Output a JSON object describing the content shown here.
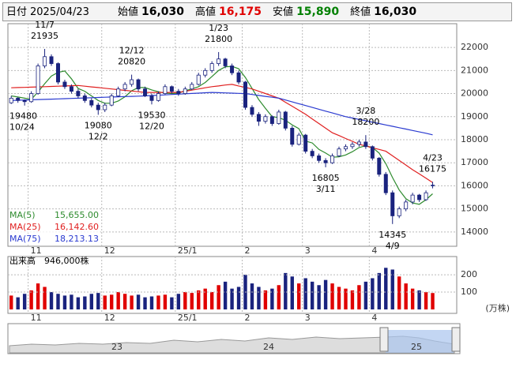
{
  "header": {
    "date_label": "日付",
    "date": "2025/04/23",
    "fields": [
      {
        "label": "始値",
        "value": "16,030",
        "color": "#000000"
      },
      {
        "label": "高値",
        "value": "16,175",
        "color": "#e00000"
      },
      {
        "label": "安値",
        "value": "15,890",
        "color": "#008000"
      },
      {
        "label": "終値",
        "value": "16,030",
        "color": "#000000"
      }
    ]
  },
  "chart_data": {
    "type": "candlestick",
    "up_color": "#ffffff",
    "down_color": "#1a237e",
    "edge_color": "#1a237e",
    "ylim": [
      13380,
      23030
    ],
    "yticks": [
      14000,
      15000,
      16000,
      17000,
      18000,
      19000,
      20000,
      21000,
      22000
    ],
    "xlim": [
      -0.5,
      66.6
    ],
    "xticks": [
      {
        "value": 3,
        "label": "11"
      },
      {
        "value": 14,
        "label": "12"
      },
      {
        "value": 25,
        "label": "25/1"
      },
      {
        "value": 35,
        "label": "2"
      },
      {
        "value": 44,
        "label": "3"
      },
      {
        "value": 54,
        "label": "4"
      }
    ],
    "grid": true,
    "candles": [
      [
        19600,
        19900,
        19550,
        19800
      ],
      [
        19800,
        19850,
        19600,
        19700
      ],
      [
        19700,
        19750,
        19480,
        19650
      ],
      [
        19650,
        20100,
        19600,
        20000
      ],
      [
        20000,
        21300,
        19950,
        21200
      ],
      [
        21200,
        21935,
        21100,
        21600
      ],
      [
        21600,
        21700,
        21200,
        21300
      ],
      [
        21300,
        21350,
        20400,
        20500
      ],
      [
        20500,
        20600,
        20200,
        20300
      ],
      [
        20300,
        20400,
        20000,
        20100
      ],
      [
        20100,
        20200,
        19800,
        19900
      ],
      [
        19900,
        20000,
        19600,
        19700
      ],
      [
        19700,
        19800,
        19400,
        19500
      ],
      [
        19500,
        19600,
        19080,
        19300
      ],
      [
        19300,
        19600,
        19200,
        19500
      ],
      [
        19500,
        20000,
        19450,
        19900
      ],
      [
        19900,
        20300,
        19850,
        20200
      ],
      [
        20200,
        20500,
        20100,
        20400
      ],
      [
        20400,
        20820,
        20300,
        20600
      ],
      [
        20600,
        20650,
        20100,
        20200
      ],
      [
        20200,
        20300,
        19850,
        19900
      ],
      [
        19900,
        20000,
        19530,
        19700
      ],
      [
        19700,
        20100,
        19650,
        20000
      ],
      [
        20000,
        20400,
        19950,
        20300
      ],
      [
        20300,
        20350,
        20000,
        20100
      ],
      [
        20100,
        20200,
        19900,
        20000
      ],
      [
        20000,
        20300,
        19950,
        20200
      ],
      [
        20200,
        20500,
        20150,
        20400
      ],
      [
        20400,
        20900,
        20350,
        20800
      ],
      [
        20800,
        21100,
        20700,
        21000
      ],
      [
        21000,
        21400,
        20900,
        21300
      ],
      [
        21300,
        21800,
        21200,
        21500
      ],
      [
        21500,
        21550,
        21100,
        21200
      ],
      [
        21200,
        21300,
        20800,
        20900
      ],
      [
        20900,
        21000,
        20400,
        20500
      ],
      [
        20500,
        20550,
        19300,
        19400
      ],
      [
        19400,
        19500,
        19000,
        19100
      ],
      [
        19100,
        19200,
        18600,
        18800
      ],
      [
        18800,
        19100,
        18700,
        19000
      ],
      [
        19000,
        19050,
        18600,
        18700
      ],
      [
        18700,
        19300,
        18650,
        19200
      ],
      [
        19200,
        19250,
        18400,
        18500
      ],
      [
        18500,
        18600,
        17700,
        17800
      ],
      [
        17800,
        18300,
        17750,
        18200
      ],
      [
        18200,
        18250,
        17400,
        17500
      ],
      [
        17500,
        17600,
        17200,
        17300
      ],
      [
        17300,
        17400,
        17000,
        17100
      ],
      [
        17100,
        17200,
        16805,
        17000
      ],
      [
        17000,
        17400,
        16950,
        17300
      ],
      [
        17300,
        17700,
        17250,
        17600
      ],
      [
        17600,
        17800,
        17500,
        17700
      ],
      [
        17700,
        17900,
        17600,
        17800
      ],
      [
        17800,
        18000,
        17700,
        17900
      ],
      [
        17900,
        18200,
        17600,
        17700
      ],
      [
        17700,
        17750,
        17100,
        17200
      ],
      [
        17200,
        17250,
        16400,
        16500
      ],
      [
        16500,
        16600,
        15600,
        15700
      ],
      [
        15700,
        15800,
        14345,
        14700
      ],
      [
        14700,
        15100,
        14600,
        15000
      ],
      [
        15000,
        15400,
        14900,
        15300
      ],
      [
        15300,
        15700,
        15200,
        15600
      ],
      [
        15600,
        15650,
        15300,
        15400
      ],
      [
        15400,
        15800,
        15350,
        15700
      ],
      [
        16030,
        16175,
        15890,
        16030
      ]
    ],
    "series": [
      {
        "name": "MA(5)",
        "legend_value": "15,655.00",
        "color": "#2e8b2e",
        "values": [
          19900,
          19850,
          19800,
          19750,
          20070,
          20430,
          20760,
          20920,
          20980,
          20640,
          20220,
          20100,
          19900,
          19700,
          19580,
          19580,
          19680,
          19860,
          20120,
          20260,
          20260,
          20160,
          20080,
          20020,
          20000,
          20020,
          20120,
          20200,
          20300,
          20480,
          20740,
          21000,
          21160,
          21180,
          21080,
          20700,
          20220,
          19740,
          19360,
          19000,
          18960,
          18840,
          18640,
          18480,
          17940,
          17860,
          17580,
          17420,
          17240,
          17260,
          17340,
          17480,
          17660,
          17740,
          17660,
          17420,
          16960,
          16360,
          15820,
          15440,
          15260,
          15200,
          15400,
          15655
        ]
      },
      {
        "name": "MA(25)",
        "legend_value": "16,142.60",
        "color": "#e02020",
        "values": [
          20250,
          20260,
          20270,
          20280,
          20290,
          20300,
          20310,
          20320,
          20330,
          20340,
          20350,
          20320,
          20290,
          20260,
          20230,
          20200,
          20170,
          20140,
          20110,
          20080,
          20050,
          20050,
          20050,
          20050,
          20050,
          20050,
          20100,
          20150,
          20200,
          20250,
          20300,
          20330,
          20370,
          20400,
          20330,
          20270,
          20200,
          20100,
          20000,
          19900,
          19800,
          19620,
          19450,
          19280,
          19100,
          18900,
          18700,
          18500,
          18300,
          18180,
          18050,
          17930,
          17800,
          17730,
          17650,
          17580,
          17500,
          17300,
          17100,
          16900,
          16700,
          16520,
          16330,
          16142.6
        ]
      },
      {
        "name": "MA(75)",
        "legend_value": "18,213.13",
        "color": "#2a3ad0",
        "values": [
          19700,
          19710,
          19720,
          19730,
          19740,
          19750,
          19760,
          19770,
          19780,
          19790,
          19800,
          19810,
          19820,
          19830,
          19840,
          19850,
          19860,
          19870,
          19880,
          19890,
          19900,
          19915,
          19930,
          19945,
          19960,
          19975,
          19990,
          20005,
          20020,
          20035,
          20050,
          20040,
          20030,
          20020,
          20010,
          20000,
          19960,
          19920,
          19880,
          19840,
          19800,
          19720,
          19640,
          19560,
          19480,
          19400,
          19320,
          19240,
          19160,
          19080,
          19000,
          18940,
          18880,
          18820,
          18760,
          18700,
          18640,
          18580,
          18520,
          18460,
          18400,
          18340,
          18280,
          18213.13
        ]
      }
    ],
    "annotations": [
      {
        "x": 5,
        "date": "11/7",
        "value": 21935,
        "side": "above"
      },
      {
        "x": 2,
        "date": "10/24",
        "value": 19480,
        "side": "below"
      },
      {
        "x": 13,
        "date": "12/2",
        "value": 19080,
        "side": "below"
      },
      {
        "x": 18,
        "date": "12/12",
        "value": 20820,
        "side": "above"
      },
      {
        "x": 21,
        "date": "12/20",
        "value": 19530,
        "side": "below"
      },
      {
        "x": 31,
        "date": "1/23",
        "value": 21800,
        "side": "above"
      },
      {
        "x": 47,
        "date": "3/11",
        "value": 16805,
        "side": "below"
      },
      {
        "x": 53,
        "date": "3/28",
        "value": 18200,
        "side": "above"
      },
      {
        "x": 57,
        "date": "4/9",
        "value": 14345,
        "side": "below"
      },
      {
        "x": 63,
        "date": "4/23",
        "value": 16175,
        "side": "above"
      }
    ],
    "volume": {
      "label": "出来高",
      "latest_label": "946,000株",
      "unit": "(万株)",
      "up_color": "#e00000",
      "down_color": "#1a237e",
      "ylim": [
        0,
        305
      ],
      "yticks": [
        100,
        200
      ],
      "values": [
        80,
        70,
        90,
        110,
        150,
        130,
        100,
        90,
        80,
        85,
        70,
        75,
        90,
        95,
        80,
        85,
        100,
        90,
        80,
        85,
        70,
        75,
        80,
        85,
        70,
        90,
        100,
        95,
        110,
        120,
        100,
        140,
        160,
        120,
        130,
        200,
        150,
        130,
        110,
        120,
        140,
        210,
        190,
        150,
        180,
        160,
        140,
        170,
        150,
        130,
        120,
        110,
        140,
        160,
        180,
        210,
        240,
        230,
        190,
        150,
        120,
        110,
        100,
        94.6
      ]
    }
  },
  "navigator": {
    "labels": [
      "23",
      "24",
      "25"
    ]
  }
}
